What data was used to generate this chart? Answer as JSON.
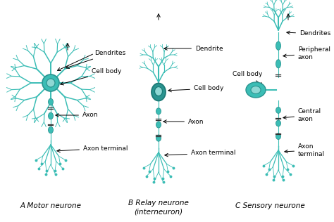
{
  "bg_color": "#ffffff",
  "nc": "#3bbdb5",
  "nd": "#2a9490",
  "nl": "#8ed8d4",
  "nc_dark": "#1d7a76",
  "title_a": "A Motor neurone",
  "title_b": "B Relay neurone\n(interneuron)",
  "title_c": "C Sensory neurone",
  "lc": "#000000",
  "fs_label": 6.5,
  "fs_title": 7.5,
  "figsize": [
    4.74,
    3.16
  ],
  "dpi": 100
}
